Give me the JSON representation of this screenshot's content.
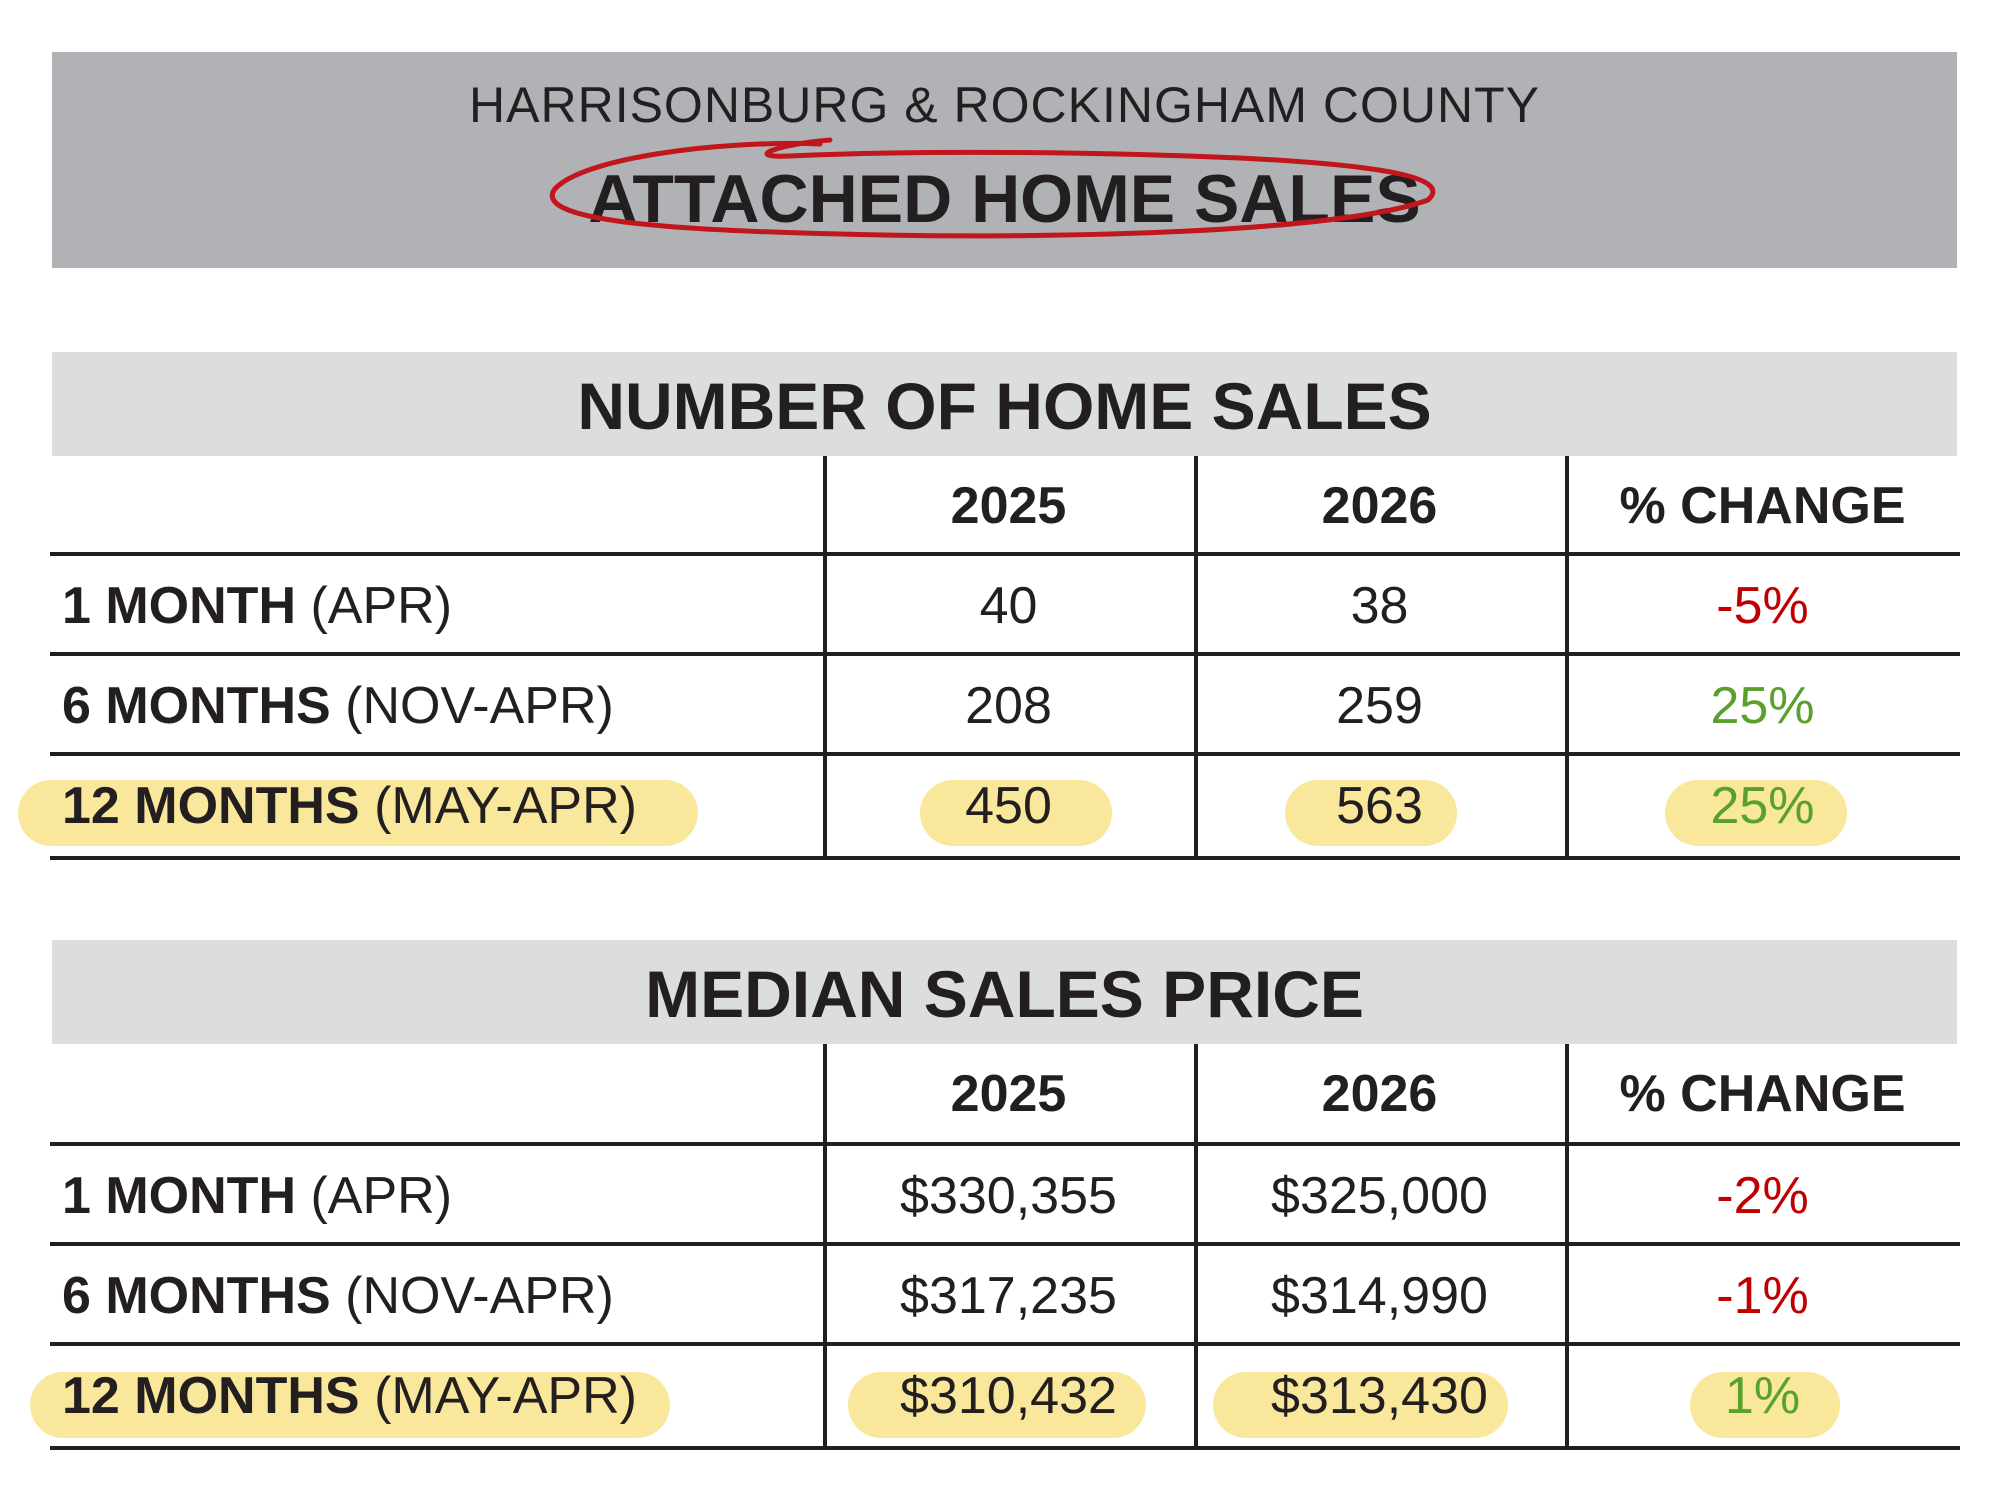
{
  "header": {
    "subtitle": "HARRISONBURG & ROCKINGHAM COUNTY",
    "title": "ATTACHED HOME SALES"
  },
  "colors": {
    "title_band": "#b1b2b5",
    "section_band": "#dcdddf",
    "negative": "#c00000",
    "positive": "#5aa02c",
    "highlight": "#f8e38a",
    "annotation_circle": "#c0161c"
  },
  "sales_table": {
    "title": "NUMBER OF HOME SALES",
    "columns": [
      "2025",
      "2026",
      "% CHANGE"
    ],
    "rows": [
      {
        "label_bold": "1 MONTH",
        "label_paren": "(APR)",
        "y2025": "40",
        "y2026": "38",
        "change": "-5%",
        "trend": "negative",
        "highlighted": false
      },
      {
        "label_bold": "6 MONTHS",
        "label_paren": "(NOV-APR)",
        "y2025": "208",
        "y2026": "259",
        "change": "25%",
        "trend": "positive",
        "highlighted": false
      },
      {
        "label_bold": "12 MONTHS",
        "label_paren": "(MAY-APR)",
        "y2025": "450",
        "y2026": "563",
        "change": "25%",
        "trend": "positive",
        "highlighted": true
      }
    ]
  },
  "price_table": {
    "title": "MEDIAN SALES PRICE",
    "columns": [
      "2025",
      "2026",
      "% CHANGE"
    ],
    "rows": [
      {
        "label_bold": "1 MONTH",
        "label_paren": "(APR)",
        "y2025": "$330,355",
        "y2026": "$325,000",
        "change": "-2%",
        "trend": "negative",
        "highlighted": false
      },
      {
        "label_bold": "6 MONTHS",
        "label_paren": "(NOV-APR)",
        "y2025": "$317,235",
        "y2026": "$314,990",
        "change": "-1%",
        "trend": "negative",
        "highlighted": false
      },
      {
        "label_bold": "12 MONTHS",
        "label_paren": "(MAY-APR)",
        "y2025": "$310,432",
        "y2026": "$313,430",
        "change": "1%",
        "trend": "positive",
        "highlighted": true
      }
    ]
  }
}
